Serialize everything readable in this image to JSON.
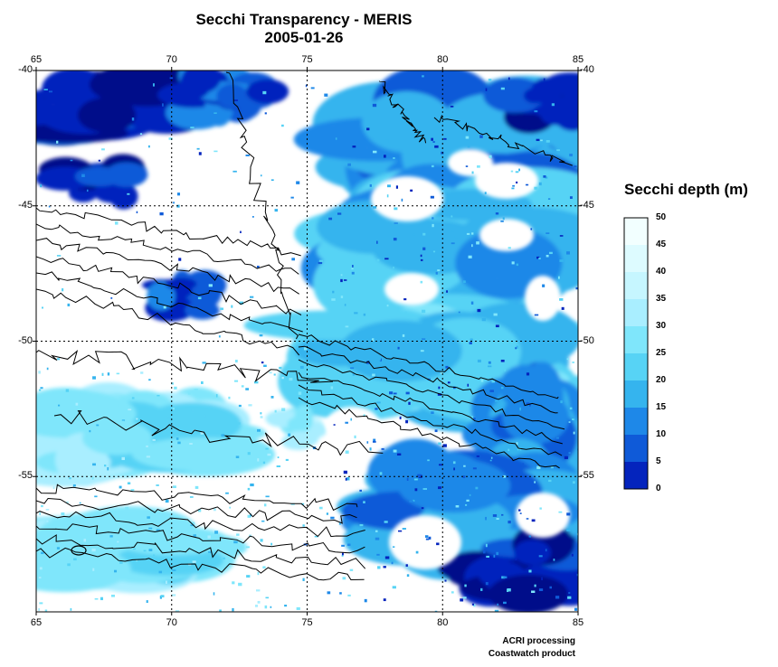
{
  "title": "Secchi Transparency - MERIS",
  "date": "2005-01-26",
  "map": {
    "lon_range": [
      65,
      85
    ],
    "lat_range": [
      -60,
      -40
    ],
    "lon_ticks": [
      "65",
      "70",
      "75",
      "80",
      "85"
    ],
    "lat_ticks": [
      "-40",
      "-45",
      "-50",
      "-55"
    ],
    "grid": "dotted",
    "contours": "bathymetry",
    "cloud_mask": "white"
  },
  "colorbar": {
    "title": "Secchi depth (m)",
    "labels": [
      "50",
      "45",
      "40",
      "35",
      "30",
      "25",
      "20",
      "15",
      "10",
      "5",
      "0"
    ],
    "colors": [
      "#f2ffff",
      "#ddfbff",
      "#c6f6ff",
      "#a9eeff",
      "#7fe6fb",
      "#57d3f5",
      "#35b4ee",
      "#1e88e8",
      "#0f5ad8",
      "#0424bd",
      "#000f8a"
    ]
  },
  "credits": [
    "ACRI processing",
    "Coastwatch product"
  ]
}
